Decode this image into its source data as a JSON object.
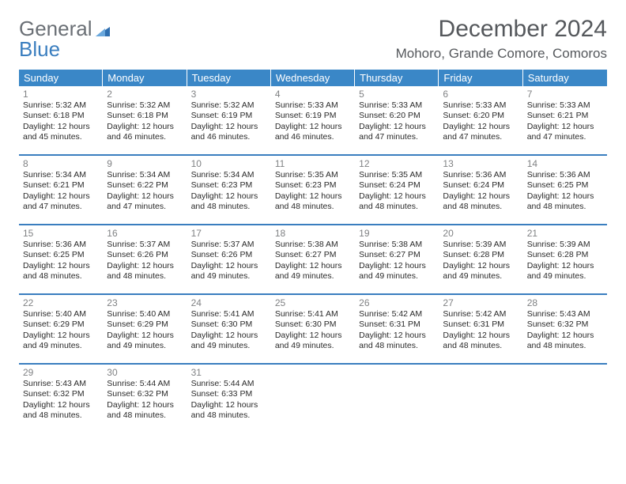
{
  "logo": {
    "text1": "General",
    "text2": "Blue"
  },
  "header": {
    "month_title": "December 2024",
    "location": "Mohoro, Grande Comore, Comoros"
  },
  "colors": {
    "header_band": "#3a87c7",
    "week_divider": "#3a7ebf",
    "day_num": "#808284",
    "text": "#2a2a2a",
    "subhead": "#55585c",
    "logo_gray": "#6a6f75",
    "logo_blue": "#3a7ebf"
  },
  "days_of_week": [
    "Sunday",
    "Monday",
    "Tuesday",
    "Wednesday",
    "Thursday",
    "Friday",
    "Saturday"
  ],
  "weeks": [
    [
      {
        "n": "1",
        "sr": "Sunrise: 5:32 AM",
        "ss": "Sunset: 6:18 PM",
        "d1": "Daylight: 12 hours",
        "d2": "and 45 minutes."
      },
      {
        "n": "2",
        "sr": "Sunrise: 5:32 AM",
        "ss": "Sunset: 6:18 PM",
        "d1": "Daylight: 12 hours",
        "d2": "and 46 minutes."
      },
      {
        "n": "3",
        "sr": "Sunrise: 5:32 AM",
        "ss": "Sunset: 6:19 PM",
        "d1": "Daylight: 12 hours",
        "d2": "and 46 minutes."
      },
      {
        "n": "4",
        "sr": "Sunrise: 5:33 AM",
        "ss": "Sunset: 6:19 PM",
        "d1": "Daylight: 12 hours",
        "d2": "and 46 minutes."
      },
      {
        "n": "5",
        "sr": "Sunrise: 5:33 AM",
        "ss": "Sunset: 6:20 PM",
        "d1": "Daylight: 12 hours",
        "d2": "and 47 minutes."
      },
      {
        "n": "6",
        "sr": "Sunrise: 5:33 AM",
        "ss": "Sunset: 6:20 PM",
        "d1": "Daylight: 12 hours",
        "d2": "and 47 minutes."
      },
      {
        "n": "7",
        "sr": "Sunrise: 5:33 AM",
        "ss": "Sunset: 6:21 PM",
        "d1": "Daylight: 12 hours",
        "d2": "and 47 minutes."
      }
    ],
    [
      {
        "n": "8",
        "sr": "Sunrise: 5:34 AM",
        "ss": "Sunset: 6:21 PM",
        "d1": "Daylight: 12 hours",
        "d2": "and 47 minutes."
      },
      {
        "n": "9",
        "sr": "Sunrise: 5:34 AM",
        "ss": "Sunset: 6:22 PM",
        "d1": "Daylight: 12 hours",
        "d2": "and 47 minutes."
      },
      {
        "n": "10",
        "sr": "Sunrise: 5:34 AM",
        "ss": "Sunset: 6:23 PM",
        "d1": "Daylight: 12 hours",
        "d2": "and 48 minutes."
      },
      {
        "n": "11",
        "sr": "Sunrise: 5:35 AM",
        "ss": "Sunset: 6:23 PM",
        "d1": "Daylight: 12 hours",
        "d2": "and 48 minutes."
      },
      {
        "n": "12",
        "sr": "Sunrise: 5:35 AM",
        "ss": "Sunset: 6:24 PM",
        "d1": "Daylight: 12 hours",
        "d2": "and 48 minutes."
      },
      {
        "n": "13",
        "sr": "Sunrise: 5:36 AM",
        "ss": "Sunset: 6:24 PM",
        "d1": "Daylight: 12 hours",
        "d2": "and 48 minutes."
      },
      {
        "n": "14",
        "sr": "Sunrise: 5:36 AM",
        "ss": "Sunset: 6:25 PM",
        "d1": "Daylight: 12 hours",
        "d2": "and 48 minutes."
      }
    ],
    [
      {
        "n": "15",
        "sr": "Sunrise: 5:36 AM",
        "ss": "Sunset: 6:25 PM",
        "d1": "Daylight: 12 hours",
        "d2": "and 48 minutes."
      },
      {
        "n": "16",
        "sr": "Sunrise: 5:37 AM",
        "ss": "Sunset: 6:26 PM",
        "d1": "Daylight: 12 hours",
        "d2": "and 48 minutes."
      },
      {
        "n": "17",
        "sr": "Sunrise: 5:37 AM",
        "ss": "Sunset: 6:26 PM",
        "d1": "Daylight: 12 hours",
        "d2": "and 49 minutes."
      },
      {
        "n": "18",
        "sr": "Sunrise: 5:38 AM",
        "ss": "Sunset: 6:27 PM",
        "d1": "Daylight: 12 hours",
        "d2": "and 49 minutes."
      },
      {
        "n": "19",
        "sr": "Sunrise: 5:38 AM",
        "ss": "Sunset: 6:27 PM",
        "d1": "Daylight: 12 hours",
        "d2": "and 49 minutes."
      },
      {
        "n": "20",
        "sr": "Sunrise: 5:39 AM",
        "ss": "Sunset: 6:28 PM",
        "d1": "Daylight: 12 hours",
        "d2": "and 49 minutes."
      },
      {
        "n": "21",
        "sr": "Sunrise: 5:39 AM",
        "ss": "Sunset: 6:28 PM",
        "d1": "Daylight: 12 hours",
        "d2": "and 49 minutes."
      }
    ],
    [
      {
        "n": "22",
        "sr": "Sunrise: 5:40 AM",
        "ss": "Sunset: 6:29 PM",
        "d1": "Daylight: 12 hours",
        "d2": "and 49 minutes."
      },
      {
        "n": "23",
        "sr": "Sunrise: 5:40 AM",
        "ss": "Sunset: 6:29 PM",
        "d1": "Daylight: 12 hours",
        "d2": "and 49 minutes."
      },
      {
        "n": "24",
        "sr": "Sunrise: 5:41 AM",
        "ss": "Sunset: 6:30 PM",
        "d1": "Daylight: 12 hours",
        "d2": "and 49 minutes."
      },
      {
        "n": "25",
        "sr": "Sunrise: 5:41 AM",
        "ss": "Sunset: 6:30 PM",
        "d1": "Daylight: 12 hours",
        "d2": "and 49 minutes."
      },
      {
        "n": "26",
        "sr": "Sunrise: 5:42 AM",
        "ss": "Sunset: 6:31 PM",
        "d1": "Daylight: 12 hours",
        "d2": "and 48 minutes."
      },
      {
        "n": "27",
        "sr": "Sunrise: 5:42 AM",
        "ss": "Sunset: 6:31 PM",
        "d1": "Daylight: 12 hours",
        "d2": "and 48 minutes."
      },
      {
        "n": "28",
        "sr": "Sunrise: 5:43 AM",
        "ss": "Sunset: 6:32 PM",
        "d1": "Daylight: 12 hours",
        "d2": "and 48 minutes."
      }
    ],
    [
      {
        "n": "29",
        "sr": "Sunrise: 5:43 AM",
        "ss": "Sunset: 6:32 PM",
        "d1": "Daylight: 12 hours",
        "d2": "and 48 minutes."
      },
      {
        "n": "30",
        "sr": "Sunrise: 5:44 AM",
        "ss": "Sunset: 6:32 PM",
        "d1": "Daylight: 12 hours",
        "d2": "and 48 minutes."
      },
      {
        "n": "31",
        "sr": "Sunrise: 5:44 AM",
        "ss": "Sunset: 6:33 PM",
        "d1": "Daylight: 12 hours",
        "d2": "and 48 minutes."
      },
      null,
      null,
      null,
      null
    ]
  ]
}
